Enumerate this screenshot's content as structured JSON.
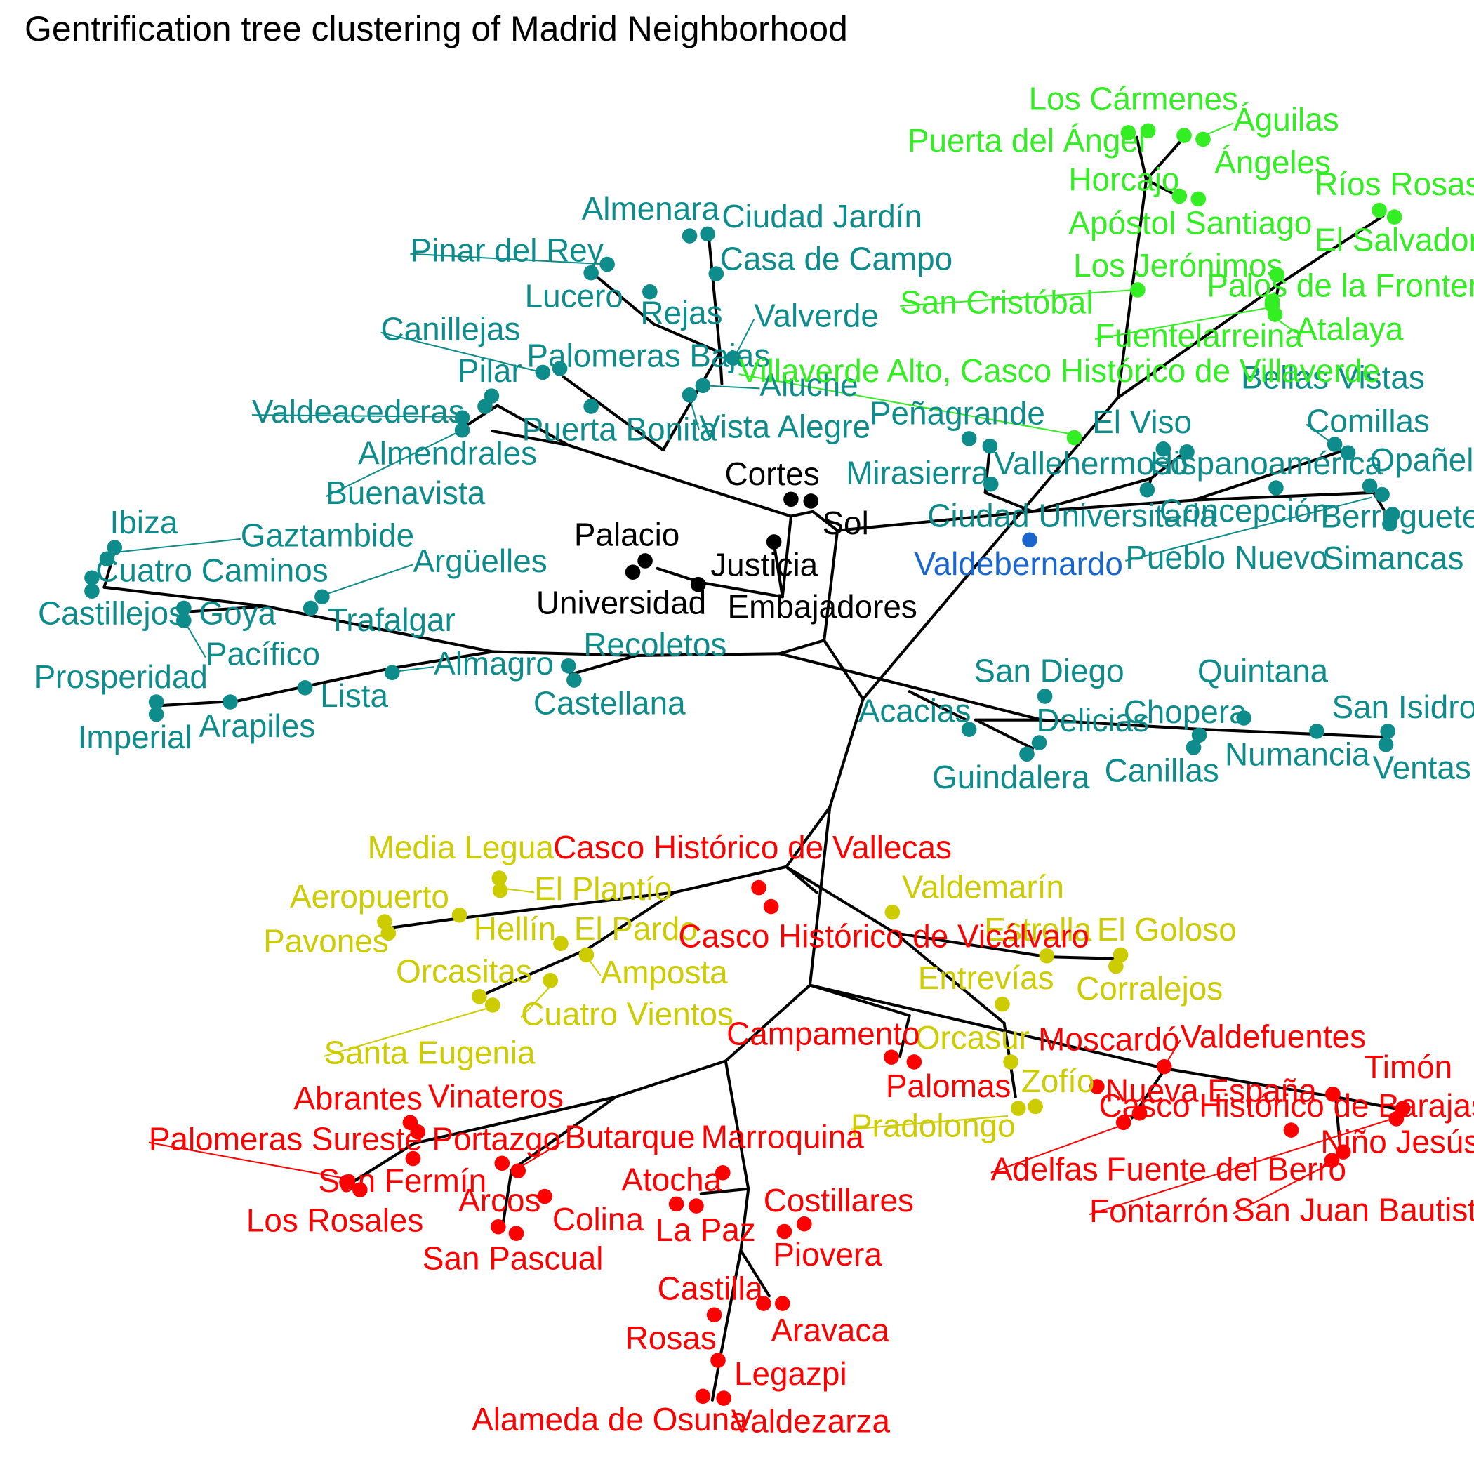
{
  "title": "Gentrification tree clustering of Madrid Neighborhood",
  "colors": {
    "black": "#000000",
    "teal": "#0e8c8c",
    "green": "#33ee22",
    "blue": "#1a66cc",
    "yellow": "#cccc00",
    "red": "#ff0000",
    "edge": "#000000"
  },
  "clusters": [
    {
      "name": "black",
      "neighborhoods": [
        "Cortes",
        "Sol",
        "Justicia",
        "Palacio",
        "Universidad",
        "Embajadores"
      ]
    },
    {
      "name": "teal",
      "neighborhoods": [
        "Almenara",
        "Ciudad Jardín",
        "Pinar del Rey",
        "Casa de Campo",
        "Lucero",
        "Rejas",
        "Valverde",
        "Canillejas",
        "Palomeras Bajas",
        "Pilar",
        "Aluche",
        "Valdeacederas",
        "Vista Alegre",
        "Puerta Bonita",
        "Almendrales",
        "Buenavista",
        "Ibiza",
        "Gaztambide",
        "Cuatro Caminos",
        "Argüelles",
        "Castillejos",
        "Goya",
        "Trafalgar",
        "Pacífico",
        "Recoletos",
        "Almagro",
        "Prosperidad",
        "Lista",
        "Castellana",
        "Arapiles",
        "Imperial",
        "Peñagrande",
        "Mirasierra",
        "Vallehermoso",
        "El Viso",
        "Hispanoamérica",
        "Ciudad Universitaria",
        "Bellas Vistas",
        "Comillas",
        "Opañel",
        "Concepción",
        "Berruguete",
        "Pueblo Nuevo",
        "Simancas",
        "San Diego",
        "Quintana",
        "Acacias",
        "Chopera",
        "San Isidro",
        "Delicias",
        "Numancia",
        "Guindalera",
        "Canillas",
        "Ventas"
      ]
    },
    {
      "name": "green",
      "neighborhoods": [
        "Los Cármenes",
        "Águilas",
        "Puerta del Ángel",
        "Ángeles",
        "Horcajo",
        "Ríos Rosas",
        "Apóstol Santiago",
        "El Salvador",
        "Los Jerónimos",
        "Palos de la Frontera",
        "San Cristóbal",
        "Atalaya",
        "Fuentelarreina",
        "Villaverde Alto, Casco Histórico de Villaverde"
      ]
    },
    {
      "name": "blue",
      "neighborhoods": [
        "Valdebernardo"
      ]
    },
    {
      "name": "yellow",
      "neighborhoods": [
        "Media Legua",
        "El Plantío",
        "Aeropuerto",
        "Valdemarín",
        "Hellín",
        "Pavones",
        "El Pardo",
        "Estrella",
        "El Goloso",
        "Orcasitas",
        "Amposta",
        "Cuatro Vientos",
        "Corralejos",
        "Santa Eugenia",
        "Entrevías",
        "Orcasur",
        "Zofío",
        "Pradolongo"
      ]
    },
    {
      "name": "red",
      "neighborhoods": [
        "Casco Histórico de Vallecas",
        "Casco Histórico de Vicálvaro",
        "Campamento",
        "Valdefuentes",
        "Moscardó",
        "Timón",
        "Nueva España",
        "Casco Histórico de Barajas",
        "Palomas",
        "Abrantes",
        "Vinateros",
        "Niño Jesús",
        "Adelfas",
        "Fuente del Berro",
        "Palomeras Sureste",
        "Portazgo",
        "Butarque",
        "Marroquina",
        "San Fermín",
        "Fontarrón",
        "San Juan Bautista",
        "Los Rosales",
        "Arcos",
        "Colina",
        "Atocha",
        "Costillares",
        "La Paz",
        "San Pascual",
        "Piovera",
        "Castilla",
        "Aravaca",
        "Rosas",
        "Legazpi",
        "Alameda de Osuna",
        "Valdezarza"
      ]
    }
  ]
}
